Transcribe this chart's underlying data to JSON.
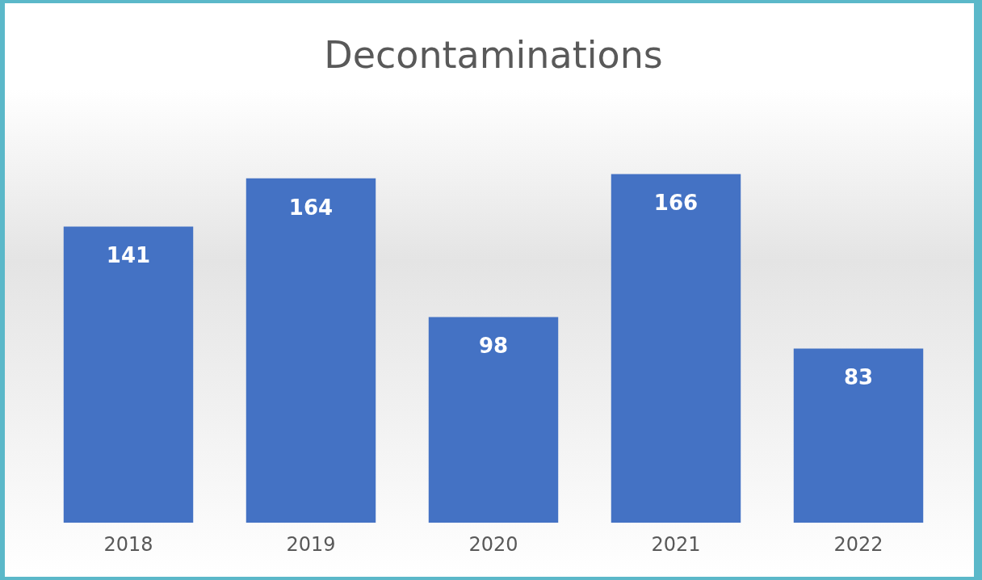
{
  "chart_data": {
    "type": "bar",
    "title": "Decontaminations",
    "categories": [
      "2018",
      "2019",
      "2020",
      "2021",
      "2022"
    ],
    "values": [
      141,
      164,
      98,
      166,
      83
    ],
    "color": "#4472c4",
    "data_labels": true,
    "grid": false,
    "legend": false,
    "tick_labels": "x"
  }
}
